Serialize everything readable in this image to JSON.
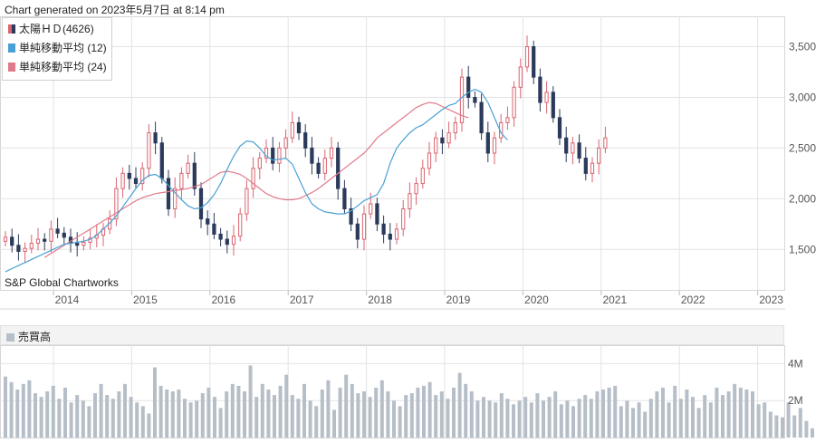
{
  "header": {
    "generated": "Chart generated on 2023年5月7日 at 8:14 pm"
  },
  "legend": {
    "price": "太陽ＨＤ(4626)",
    "ma12": "単純移動平均 (12)",
    "ma24": "単純移動平均 (24)"
  },
  "source": "S&P Global Chartworks",
  "volume_title": "売買高",
  "colors": {
    "up": "#d9646f",
    "down": "#2b3a5a",
    "ma12": "#4a9fd4",
    "ma24": "#e07a8a",
    "volume": "#b6bfc7",
    "grid": "#e3e3e3"
  },
  "chart_data": [
    {
      "type": "candlestick",
      "title": "太陽ＨＤ(4626)",
      "period": "monthly",
      "x_start": "2013-05",
      "xlabels": [
        "2014",
        "2015",
        "2016",
        "2017",
        "2018",
        "2019",
        "2020",
        "2021",
        "2022",
        "2023"
      ],
      "yticks": [
        "1,500",
        "2,000",
        "2,500",
        "3,000",
        "3,500"
      ],
      "ylim": [
        1100,
        3800
      ],
      "grid": true,
      "legend_position": "top-left",
      "close": [
        1620,
        1540,
        1480,
        1510,
        1560,
        1600,
        1580,
        1700,
        1660,
        1620,
        1560,
        1540,
        1570,
        1610,
        1640,
        1700,
        1800,
        2100,
        2250,
        2200,
        2150,
        2300,
        2650,
        2550,
        2200,
        1900,
        2100,
        2250,
        2350,
        2100,
        1800,
        1750,
        1650,
        1600,
        1550,
        1630,
        1850,
        2100,
        2300,
        2400,
        2500,
        2350,
        2500,
        2600,
        2750,
        2650,
        2500,
        2350,
        2250,
        2400,
        2500,
        2100,
        1900,
        1750,
        1600,
        1850,
        1950,
        1750,
        1650,
        1600,
        1700,
        1900,
        2050,
        2150,
        2300,
        2450,
        2600,
        2550,
        2650,
        2750,
        3200,
        3000,
        2950,
        2650,
        2450,
        2600,
        2750,
        2800,
        3100,
        3300,
        3500,
        3200,
        2950,
        3050,
        2800,
        2600,
        2450,
        2550,
        2400,
        2250,
        2350,
        2500,
        2600
      ],
      "ma12": [
        1280,
        1310,
        1340,
        1370,
        1400,
        1430,
        1460,
        1490,
        1520,
        1550,
        1560,
        1570,
        1580,
        1600,
        1640,
        1700,
        1760,
        1830,
        1920,
        2010,
        2100,
        2180,
        2230,
        2240,
        2200,
        2130,
        2060,
        1990,
        1930,
        1900,
        1910,
        1960,
        2040,
        2150,
        2290,
        2420,
        2520,
        2570,
        2560,
        2500,
        2420,
        2380,
        2390,
        2400,
        2340,
        2200,
        2060,
        1950,
        1900,
        1870,
        1860,
        1850,
        1850,
        1880,
        1930,
        1980,
        2010,
        2040,
        2150,
        2350,
        2500,
        2580,
        2650,
        2700,
        2730,
        2780,
        2830,
        2880,
        2920,
        2940,
        3000,
        3050,
        3080,
        3050,
        2950,
        2800,
        2650,
        2580
      ],
      "ma12_x_start": "2013-05",
      "ma24": [
        1420,
        1460,
        1500,
        1540,
        1580,
        1620,
        1660,
        1700,
        1740,
        1780,
        1820,
        1860,
        1900,
        1940,
        1980,
        2010,
        2030,
        2050,
        2060,
        2070,
        2080,
        2090,
        2100,
        2120,
        2140,
        2180,
        2220,
        2260,
        2270,
        2260,
        2240,
        2200,
        2150,
        2100,
        2050,
        2020,
        2000,
        1990,
        1990,
        2000,
        2030,
        2060,
        2100,
        2150,
        2200,
        2250,
        2300,
        2350,
        2400,
        2450,
        2520,
        2600,
        2650,
        2700,
        2750,
        2800,
        2850,
        2900,
        2930,
        2950,
        2940,
        2910,
        2880,
        2850,
        2820,
        2800
      ],
      "ma24_x_start": "2013-11"
    },
    {
      "type": "bar",
      "title": "売買高",
      "yticks": [
        "2M",
        "4M"
      ],
      "ylim": [
        0,
        5000000
      ],
      "values": [
        3300000,
        3000000,
        2600000,
        2900000,
        3100000,
        2400000,
        2200000,
        2500000,
        2800000,
        2100000,
        2700000,
        1900000,
        2300000,
        2000000,
        1700000,
        2400000,
        2900000,
        2300000,
        2100000,
        2500000,
        2900000,
        2200000,
        1900000,
        1700000,
        1300000,
        3800000,
        2800000,
        2600000,
        2500000,
        2600000,
        2100000,
        1900000,
        2000000,
        2400000,
        2700000,
        2200000,
        1600000,
        2500000,
        2900000,
        2800000,
        2500000,
        3900000,
        2200000,
        2900000,
        2600000,
        2300000,
        2800000,
        3400000,
        2300000,
        2100000,
        2900000,
        2000000,
        1700000,
        2600000,
        3100000,
        1500000,
        2700000,
        3400000,
        2900000,
        2400000,
        2500000,
        2200000,
        2700000,
        3100000,
        2500000,
        2000000,
        1700000,
        2300000,
        2400000,
        2700000,
        2800000,
        3000000,
        2300000,
        2500000,
        2100000,
        2700000,
        3500000,
        2900000,
        2500000,
        2000000,
        2200000,
        2000000,
        1900000,
        2400000,
        2100000,
        1800000,
        2000000,
        2200000,
        1900000,
        2400000,
        2000000,
        2200000,
        2500000,
        1800000,
        2000000,
        1700000,
        2100000,
        2300000,
        2100000,
        2500000,
        2600000,
        2700000,
        2800000,
        1700000,
        2000000,
        1600000,
        1900000,
        1400000,
        2100000,
        2500000,
        2700000,
        1900000,
        2800000,
        2100000,
        2600000,
        2200000,
        1600000,
        2300000,
        1900000,
        2700000,
        2300000,
        2500000,
        2900000,
        2700000,
        2600000,
        2500000,
        1800000,
        1900000,
        1400000,
        1200000,
        1100000,
        1900000,
        1200000,
        1600000,
        900000,
        500000
      ]
    }
  ]
}
